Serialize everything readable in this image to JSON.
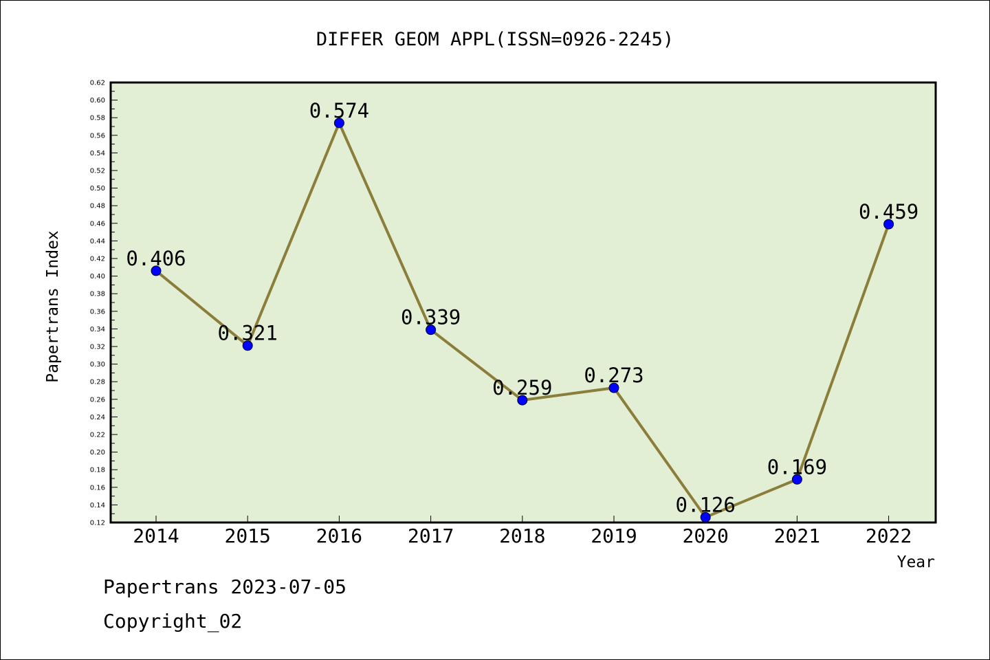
{
  "chart_data": {
    "type": "line",
    "title": "DIFFER GEOM APPL(ISSN=0926-2245)",
    "xlabel": "Year",
    "ylabel": "Papertrans Index",
    "categories": [
      "2014",
      "2015",
      "2016",
      "2017",
      "2018",
      "2019",
      "2020",
      "2021",
      "2022"
    ],
    "values": [
      0.406,
      0.321,
      0.574,
      0.339,
      0.259,
      0.273,
      0.126,
      0.169,
      0.459
    ],
    "data_labels": [
      "0.406",
      "0.321",
      "0.574",
      "0.339",
      "0.259",
      "0.273",
      "0.126",
      "0.169",
      "0.459"
    ],
    "ylim": [
      0.12,
      0.62
    ],
    "yticks": [
      "0.12",
      "0.14",
      "0.16",
      "0.18",
      "0.20",
      "0.22",
      "0.24",
      "0.26",
      "0.28",
      "0.30",
      "0.32",
      "0.34",
      "0.36",
      "0.38",
      "0.40",
      "0.42",
      "0.44",
      "0.46",
      "0.48",
      "0.50",
      "0.52",
      "0.54",
      "0.56",
      "0.58",
      "0.60",
      "0.62"
    ],
    "grid": false,
    "legend": "none",
    "colors": {
      "plot_background": "#e2efd5",
      "line": "#8b7d3a",
      "marker": "#0000ff"
    }
  },
  "footer": {
    "date_line": "Papertrans 2023-07-05",
    "copyright": "Copyright_02"
  }
}
